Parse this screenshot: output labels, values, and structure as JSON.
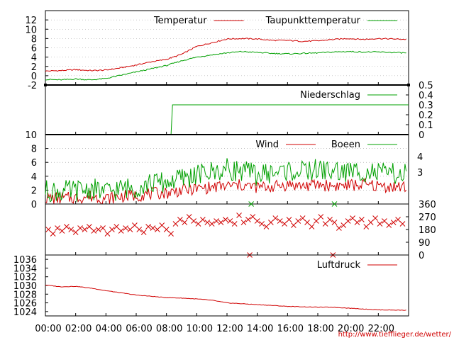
{
  "chart_data": [
    {
      "type": "line",
      "panel": "temperature",
      "x": [
        0,
        1,
        2,
        3,
        4,
        5,
        6,
        7,
        8,
        9,
        10,
        11,
        12,
        13,
        14,
        15,
        16,
        17,
        18,
        19,
        20,
        21,
        22,
        23.9
      ],
      "xlim": [
        0,
        24
      ],
      "ylim": [
        -2,
        14
      ],
      "yticks": [
        -2,
        0,
        2,
        4,
        6,
        8,
        10,
        12
      ],
      "grid": true,
      "legend_position": "top-right",
      "series": [
        {
          "name": "Temperatur",
          "color": "#d00000",
          "values": [
            1.0,
            1.1,
            1.3,
            1.1,
            1.2,
            1.7,
            2.3,
            3.0,
            3.5,
            4.6,
            6.3,
            7.1,
            7.9,
            8.0,
            7.9,
            7.6,
            7.6,
            7.4,
            7.5,
            7.8,
            8.0,
            7.8,
            8.0,
            7.8
          ]
        },
        {
          "name": "Taupunkttemperatur",
          "color": "#00a000",
          "values": [
            -0.8,
            -0.9,
            -0.7,
            -0.9,
            -0.6,
            0.1,
            0.8,
            1.5,
            2.2,
            3.2,
            4.0,
            4.5,
            4.9,
            5.2,
            5.0,
            4.8,
            4.7,
            4.8,
            4.9,
            5.1,
            5.2,
            5.1,
            5.1,
            4.9
          ]
        }
      ]
    },
    {
      "type": "line",
      "panel": "precipitation",
      "x": [
        0,
        8.3,
        8.4,
        24
      ],
      "xlim": [
        0,
        24
      ],
      "ylim": [
        0,
        0.5
      ],
      "yticks": [
        0,
        0.1,
        0.2,
        0.3,
        0.4,
        0.5
      ],
      "ytick_labels": [
        "0",
        "0.1",
        "0.2",
        "0.3",
        "0.4",
        "0.5"
      ],
      "legend_position": "top-right",
      "series": [
        {
          "name": "Niederschlag",
          "color": "#00a000",
          "values": [
            0,
            0,
            0.3,
            0.3
          ]
        }
      ]
    },
    {
      "type": "line",
      "panel": "wind",
      "x": [
        0,
        1,
        2,
        3,
        4,
        5,
        6,
        7,
        8,
        9,
        10,
        11,
        12,
        13,
        14,
        15,
        16,
        17,
        18,
        19,
        20,
        21,
        22,
        23.9
      ],
      "xlim": [
        0,
        24
      ],
      "ylim": [
        0,
        10
      ],
      "yticks": [
        0,
        2,
        4,
        6,
        8,
        10
      ],
      "right_labels": [
        "4",
        "3"
      ],
      "grid": true,
      "legend_position": "top-right",
      "series": [
        {
          "name": "Wind",
          "color": "#d00000",
          "values": [
            0.9,
            0.8,
            0.9,
            1.1,
            0.8,
            1.1,
            1.2,
            1.5,
            1.6,
            2.0,
            2.2,
            2.4,
            2.6,
            2.7,
            2.4,
            2.5,
            2.8,
            2.6,
            2.8,
            2.6,
            2.7,
            2.8,
            2.6,
            2.4
          ]
        },
        {
          "name": "Boeen",
          "color": "#00a000",
          "values": [
            1.9,
            1.8,
            1.9,
            2.2,
            1.7,
            2.2,
            2.4,
            3.0,
            3.1,
            3.7,
            4.2,
            4.6,
            5.0,
            4.8,
            4.2,
            4.5,
            4.8,
            4.6,
            5.0,
            4.7,
            4.6,
            4.8,
            4.4,
            4.2
          ]
        }
      ]
    },
    {
      "type": "scatter",
      "panel": "wind-direction",
      "xlim": [
        0,
        24
      ],
      "ylim": [
        0,
        360
      ],
      "yticks": [
        0,
        90,
        180,
        270,
        360
      ],
      "marker": "x",
      "series": [
        {
          "name": "",
          "color": "#d00000",
          "x": [
            0.2,
            0.5,
            0.8,
            1.1,
            1.4,
            1.7,
            2.0,
            2.3,
            2.6,
            2.9,
            3.2,
            3.5,
            3.8,
            4.1,
            4.4,
            4.7,
            5.0,
            5.3,
            5.6,
            5.9,
            6.2,
            6.5,
            6.8,
            7.1,
            7.4,
            7.7,
            8.0,
            8.3,
            8.6,
            8.9,
            9.2,
            9.5,
            9.8,
            10.1,
            10.4,
            10.7,
            11.0,
            11.3,
            11.6,
            11.9,
            12.2,
            12.5,
            12.8,
            13.1,
            13.4,
            13.7,
            14.0,
            14.3,
            14.6,
            14.9,
            15.2,
            15.5,
            15.8,
            16.1,
            16.4,
            16.7,
            17.0,
            17.3,
            17.6,
            17.9,
            18.2,
            18.5,
            18.8,
            19.1,
            19.4,
            19.7,
            20.0,
            20.3,
            20.6,
            20.9,
            21.2,
            21.5,
            21.8,
            22.1,
            22.4,
            22.7,
            23.0,
            23.3,
            23.6,
            13.5,
            19.0
          ],
          "values": [
            180,
            150,
            190,
            170,
            200,
            180,
            160,
            190,
            180,
            200,
            170,
            180,
            190,
            150,
            180,
            200,
            170,
            190,
            180,
            210,
            180,
            160,
            200,
            190,
            180,
            210,
            180,
            150,
            220,
            250,
            230,
            270,
            240,
            220,
            250,
            230,
            220,
            240,
            230,
            250,
            240,
            220,
            280,
            230,
            250,
            270,
            240,
            220,
            200,
            230,
            260,
            240,
            220,
            250,
            210,
            240,
            260,
            230,
            200,
            240,
            270,
            220,
            250,
            230,
            190,
            210,
            240,
            260,
            230,
            250,
            200,
            230,
            260,
            220,
            240,
            210,
            230,
            250,
            220,
            0,
            0
          ]
        },
        {
          "name": "",
          "color": "#00a000",
          "x": [
            13.6,
            19.1
          ],
          "values": [
            360,
            360
          ]
        }
      ]
    },
    {
      "type": "line",
      "panel": "pressure",
      "x": [
        0,
        1,
        2,
        3,
        4,
        5,
        6,
        7,
        8,
        9,
        10,
        11,
        12,
        13,
        14,
        15,
        16,
        17,
        18,
        19,
        20,
        21,
        22,
        23.9
      ],
      "xlim": [
        0,
        24
      ],
      "ylim": [
        1023,
        1037
      ],
      "yticks": [
        1024,
        1026,
        1028,
        1030,
        1032,
        1034,
        1036
      ],
      "xticks": [
        0,
        2,
        4,
        6,
        8,
        10,
        12,
        14,
        16,
        18,
        20,
        22
      ],
      "xtick_labels": [
        "00:00",
        "02:00",
        "04:00",
        "06:00",
        "08:00",
        "10:00",
        "12:00",
        "14:00",
        "16:00",
        "18:00",
        "20:00",
        "22:00"
      ],
      "legend_position": "top-right",
      "series": [
        {
          "name": "Luftdruck",
          "color": "#d00000",
          "values": [
            1030.1,
            1029.7,
            1029.8,
            1029.4,
            1028.8,
            1028.3,
            1027.8,
            1027.5,
            1027.2,
            1027.1,
            1026.9,
            1026.6,
            1026.0,
            1025.8,
            1025.6,
            1025.4,
            1025.2,
            1025.1,
            1025.0,
            1025.0,
            1024.8,
            1024.6,
            1024.4,
            1024.3
          ]
        }
      ]
    }
  ],
  "credit": "http://www.tiefflieger.de/wetter/"
}
